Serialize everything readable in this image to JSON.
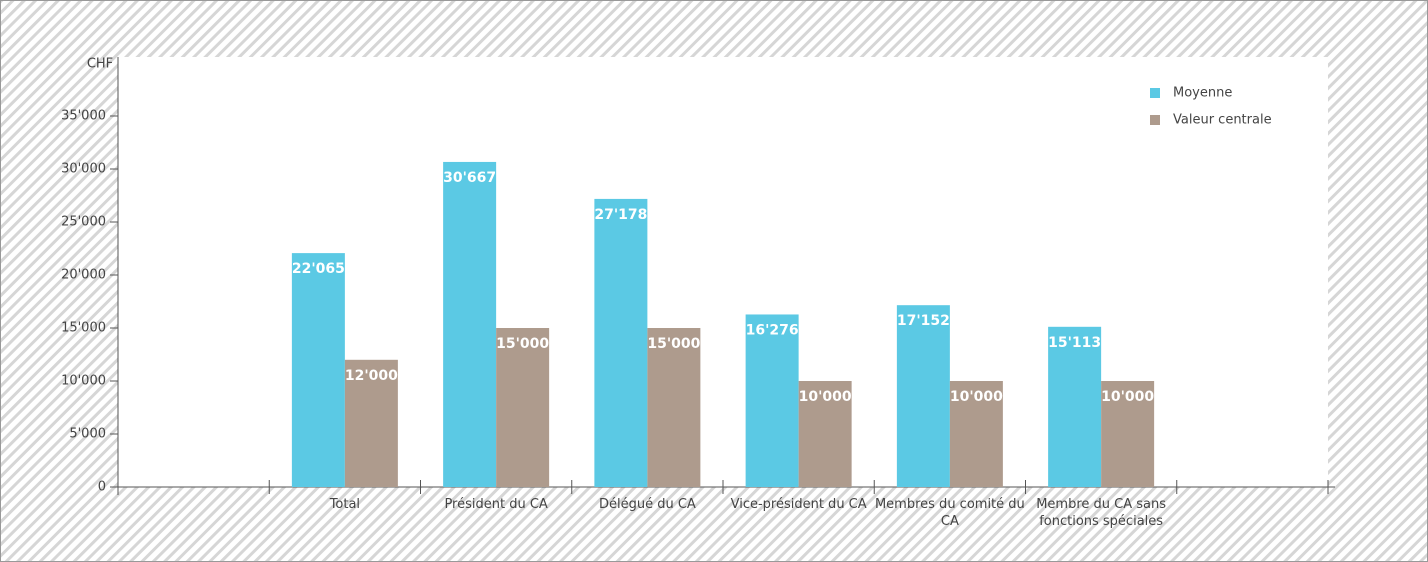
{
  "chart_data": {
    "type": "bar",
    "y_label": "CHF",
    "categories": [
      null,
      "Total",
      "Président du CA",
      "Délégué du CA",
      "Vice-président du CA",
      "Membres du comité du CA",
      "Membre du CA sans fonctions spéciales",
      null
    ],
    "series": [
      {
        "name": "Moyenne",
        "color": "#5bc9e4",
        "values": [
          null,
          22065,
          30667,
          27178,
          16276,
          17152,
          15113,
          null
        ],
        "value_labels": [
          null,
          "22'065",
          "30'667",
          "27'178",
          "16'276",
          "17'152",
          "15'113",
          null
        ]
      },
      {
        "name": "Valeur centrale",
        "color": "#ae9b8d",
        "values": [
          null,
          12000,
          15000,
          15000,
          10000,
          10000,
          10000,
          null
        ],
        "value_labels": [
          null,
          "12'000",
          "15'000",
          "15'000",
          "10'000",
          "10'000",
          "10'000",
          null
        ]
      }
    ],
    "ylim": [
      0,
      40000
    ],
    "yticks": [
      0,
      {
        "value": 5000,
        "label": "5'000"
      },
      {
        "value": 10000,
        "label": "10'000"
      },
      {
        "value": 15000,
        "label": "15'000"
      },
      {
        "value": 20000,
        "label": "20'000"
      },
      {
        "value": 25000,
        "label": "25'000"
      },
      {
        "value": 30000,
        "label": "30'000"
      },
      {
        "value": 35000,
        "label": "35'000"
      }
    ],
    "legend": "top-right"
  }
}
